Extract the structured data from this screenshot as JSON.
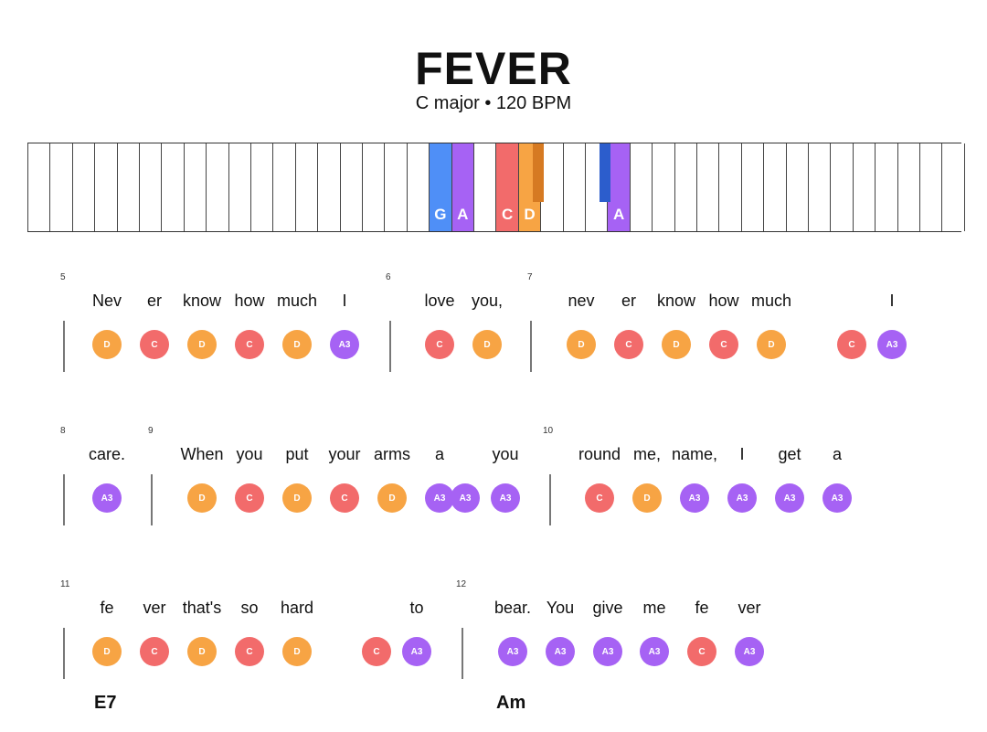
{
  "song": {
    "title": "FEVER",
    "subtitle": "C major • 120 BPM"
  },
  "colors": {
    "C": "#f26b6b",
    "D": "#f7a444",
    "A3": "#a662f4",
    "G": "#4f8ff7",
    "A": "#a662f4",
    "D_sharp": "#d67a22",
    "dark_blue": "#2c5dcc"
  },
  "piano": {
    "highlighted_white_keys": [
      {
        "label": "G",
        "color_key": "G"
      },
      {
        "label": "A",
        "color_key": "A"
      },
      {
        "label": "C",
        "color_key": "C"
      },
      {
        "label": "D",
        "color_key": "D"
      },
      {
        "label": "A",
        "color_key": "A"
      }
    ],
    "highlighted_black_keys": [
      {
        "color_key": "D_sharp"
      },
      {
        "color_key": "dark_blue"
      }
    ]
  },
  "rows": [
    {
      "measures": [
        {
          "number": "5",
          "notes": [
            {
              "lyric": "Nev",
              "note": "D"
            },
            {
              "lyric": "er",
              "note": "C"
            },
            {
              "lyric": "know",
              "note": "D"
            },
            {
              "lyric": "how",
              "note": "C"
            },
            {
              "lyric": "much",
              "note": "D"
            },
            {
              "lyric": "I",
              "note": "A3"
            }
          ]
        },
        {
          "number": "6",
          "notes": [
            {
              "lyric": "love",
              "note": "C"
            },
            {
              "lyric": "you,",
              "note": "D"
            }
          ]
        },
        {
          "number": "7",
          "notes": [
            {
              "lyric": "nev",
              "note": "D"
            },
            {
              "lyric": "er",
              "note": "C"
            },
            {
              "lyric": "know",
              "note": "D"
            },
            {
              "lyric": "how",
              "note": "C"
            },
            {
              "lyric": "much",
              "note": "D"
            },
            {
              "lyric": "",
              "note": "C"
            },
            {
              "lyric": "I",
              "note": "A3"
            }
          ]
        }
      ]
    },
    {
      "measures": [
        {
          "number": "8",
          "notes": [
            {
              "lyric": "care.",
              "note": "A3"
            }
          ]
        },
        {
          "number": "9",
          "notes": [
            {
              "lyric": "When",
              "note": "D"
            },
            {
              "lyric": "you",
              "note": "C"
            },
            {
              "lyric": "put",
              "note": "D"
            },
            {
              "lyric": "your",
              "note": "C"
            },
            {
              "lyric": "arms",
              "note": "D"
            },
            {
              "lyric": "a",
              "note": "A3"
            },
            {
              "lyric": "",
              "note": "A3"
            },
            {
              "lyric": "you",
              "note": "A3"
            }
          ]
        },
        {
          "number": "10",
          "notes": [
            {
              "lyric": "round",
              "note": "C"
            },
            {
              "lyric": "me,",
              "note": "D"
            },
            {
              "lyric": "name,",
              "note": "A3"
            },
            {
              "lyric": "I",
              "note": "A3"
            },
            {
              "lyric": "get",
              "note": "A3"
            },
            {
              "lyric": "a",
              "note": "A3"
            }
          ]
        }
      ]
    },
    {
      "measures": [
        {
          "number": "11",
          "chord": "E7",
          "notes": [
            {
              "lyric": "fe",
              "note": "D"
            },
            {
              "lyric": "ver",
              "note": "C"
            },
            {
              "lyric": "that's",
              "note": "D"
            },
            {
              "lyric": "so",
              "note": "C"
            },
            {
              "lyric": "hard",
              "note": "D"
            },
            {
              "lyric": "",
              "note": "C"
            },
            {
              "lyric": "to",
              "note": "A3"
            }
          ]
        },
        {
          "number": "12",
          "chord": "Am",
          "notes": [
            {
              "lyric": "bear.",
              "note": "A3"
            },
            {
              "lyric": "You",
              "note": "A3"
            },
            {
              "lyric": "give",
              "note": "A3"
            },
            {
              "lyric": "me",
              "note": "A3"
            },
            {
              "lyric": "fe",
              "note": "C"
            },
            {
              "lyric": "ver",
              "note": "A3"
            }
          ]
        }
      ]
    }
  ]
}
